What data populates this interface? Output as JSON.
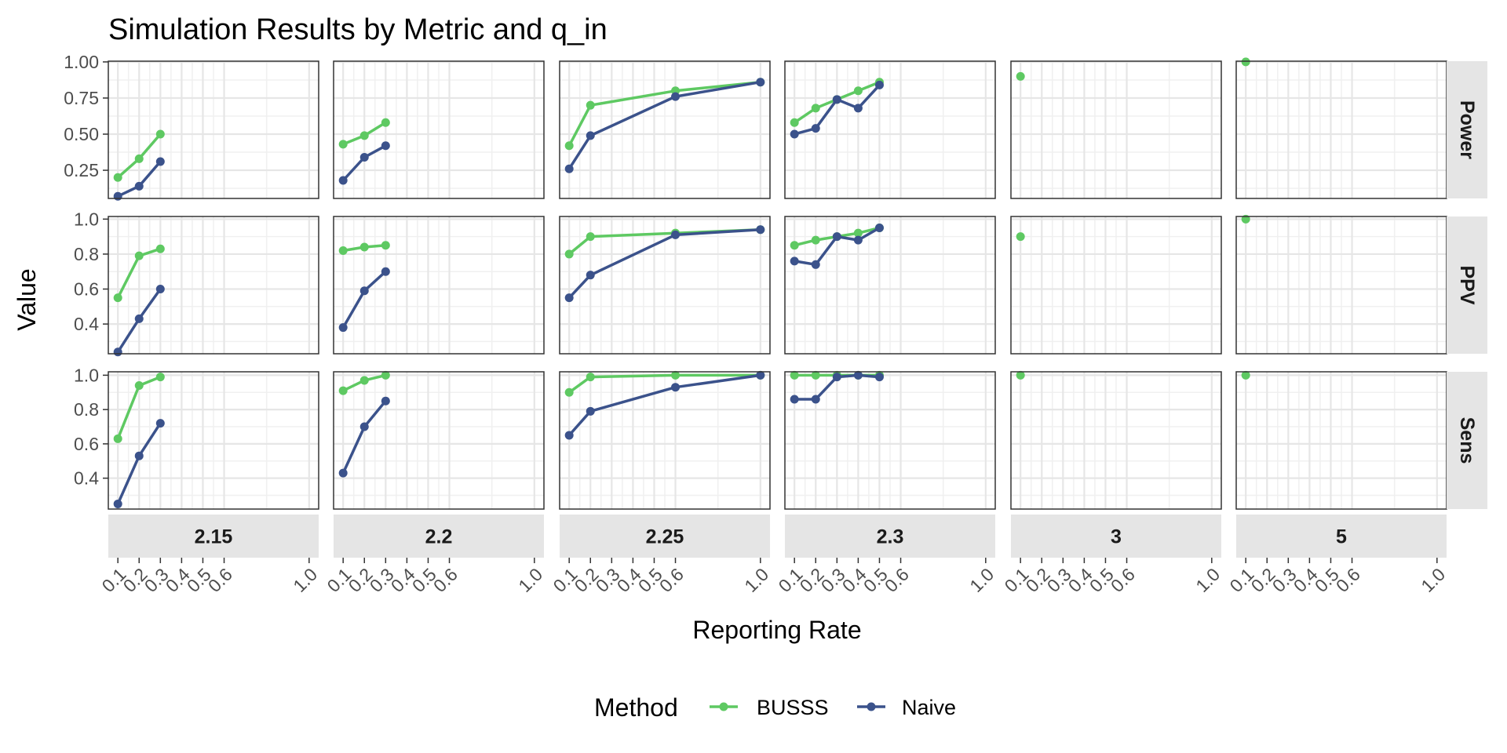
{
  "chart_data": {
    "type": "line",
    "title": "Simulation Results by Metric and q_in",
    "xlabel": "Reporting Rate",
    "ylabel": "Value",
    "legend": {
      "title": "Method",
      "position": "bottom"
    },
    "x_ticks": [
      0.1,
      0.2,
      0.3,
      0.4,
      0.5,
      0.6,
      1.0
    ],
    "x_tick_labels": [
      "0.1",
      "0.2",
      "0.3",
      "0.4",
      "0.5",
      "0.6",
      "1.0"
    ],
    "xlim": [
      0.055,
      1.045
    ],
    "grid": true,
    "colors": {
      "BUSSS": "#5ec962",
      "Naive": "#3b528b"
    },
    "columns": [
      "2.15",
      "2.2",
      "2.25",
      "2.3",
      "3",
      "5"
    ],
    "rows": [
      {
        "label": "Power",
        "ylim": [
          0.055,
          1.005
        ],
        "y_ticks": [
          0.25,
          0.5,
          0.75,
          1.0
        ],
        "y_tick_labels": [
          "0.25",
          "0.50",
          "0.75",
          "1.00"
        ]
      },
      {
        "label": "PPV",
        "ylim": [
          0.23,
          1.015
        ],
        "y_ticks": [
          0.4,
          0.6,
          0.8,
          1.0
        ],
        "y_tick_labels": [
          "0.4",
          "0.6",
          "0.8",
          "1.0"
        ]
      },
      {
        "label": "Sens",
        "ylim": [
          0.22,
          1.02
        ],
        "y_ticks": [
          0.4,
          0.6,
          0.8,
          1.0
        ],
        "y_tick_labels": [
          "0.4",
          "0.6",
          "0.8",
          "1.0"
        ]
      }
    ],
    "series": [
      {
        "name": "BUSSS",
        "metric": "Power",
        "q_in": "2.15",
        "x": [
          0.1,
          0.2,
          0.3
        ],
        "y": [
          0.2,
          0.33,
          0.5
        ]
      },
      {
        "name": "Naive",
        "metric": "Power",
        "q_in": "2.15",
        "x": [
          0.1,
          0.2,
          0.3
        ],
        "y": [
          0.07,
          0.14,
          0.31
        ]
      },
      {
        "name": "BUSSS",
        "metric": "Power",
        "q_in": "2.2",
        "x": [
          0.1,
          0.2,
          0.3
        ],
        "y": [
          0.43,
          0.49,
          0.58
        ]
      },
      {
        "name": "Naive",
        "metric": "Power",
        "q_in": "2.2",
        "x": [
          0.1,
          0.2,
          0.3
        ],
        "y": [
          0.18,
          0.34,
          0.42
        ]
      },
      {
        "name": "BUSSS",
        "metric": "Power",
        "q_in": "2.25",
        "x": [
          0.1,
          0.2,
          0.6,
          1.0
        ],
        "y": [
          0.42,
          0.7,
          0.8,
          0.86
        ]
      },
      {
        "name": "Naive",
        "metric": "Power",
        "q_in": "2.25",
        "x": [
          0.1,
          0.2,
          0.6,
          1.0
        ],
        "y": [
          0.26,
          0.49,
          0.76,
          0.86
        ]
      },
      {
        "name": "BUSSS",
        "metric": "Power",
        "q_in": "2.3",
        "x": [
          0.1,
          0.2,
          0.3,
          0.4,
          0.5
        ],
        "y": [
          0.58,
          0.68,
          0.74,
          0.8,
          0.86
        ]
      },
      {
        "name": "Naive",
        "metric": "Power",
        "q_in": "2.3",
        "x": [
          0.1,
          0.2,
          0.3,
          0.4,
          0.5
        ],
        "y": [
          0.5,
          0.54,
          0.74,
          0.68,
          0.84
        ]
      },
      {
        "name": "BUSSS",
        "metric": "Power",
        "q_in": "3",
        "x": [
          0.1
        ],
        "y": [
          0.9
        ]
      },
      {
        "name": "BUSSS",
        "metric": "Power",
        "q_in": "5",
        "x": [
          0.1
        ],
        "y": [
          1.0
        ]
      },
      {
        "name": "BUSSS",
        "metric": "PPV",
        "q_in": "2.15",
        "x": [
          0.1,
          0.2,
          0.3
        ],
        "y": [
          0.55,
          0.79,
          0.83
        ]
      },
      {
        "name": "Naive",
        "metric": "PPV",
        "q_in": "2.15",
        "x": [
          0.1,
          0.2,
          0.3
        ],
        "y": [
          0.24,
          0.43,
          0.6
        ]
      },
      {
        "name": "BUSSS",
        "metric": "PPV",
        "q_in": "2.2",
        "x": [
          0.1,
          0.2,
          0.3
        ],
        "y": [
          0.82,
          0.84,
          0.85
        ]
      },
      {
        "name": "Naive",
        "metric": "PPV",
        "q_in": "2.2",
        "x": [
          0.1,
          0.2,
          0.3
        ],
        "y": [
          0.38,
          0.59,
          0.7
        ]
      },
      {
        "name": "BUSSS",
        "metric": "PPV",
        "q_in": "2.25",
        "x": [
          0.1,
          0.2,
          0.6,
          1.0
        ],
        "y": [
          0.8,
          0.9,
          0.92,
          0.94
        ]
      },
      {
        "name": "Naive",
        "metric": "PPV",
        "q_in": "2.25",
        "x": [
          0.1,
          0.2,
          0.6,
          1.0
        ],
        "y": [
          0.55,
          0.68,
          0.91,
          0.94
        ]
      },
      {
        "name": "BUSSS",
        "metric": "PPV",
        "q_in": "2.3",
        "x": [
          0.1,
          0.2,
          0.3,
          0.4,
          0.5
        ],
        "y": [
          0.85,
          0.88,
          0.9,
          0.92,
          0.95
        ]
      },
      {
        "name": "Naive",
        "metric": "PPV",
        "q_in": "2.3",
        "x": [
          0.1,
          0.2,
          0.3,
          0.4,
          0.5
        ],
        "y": [
          0.76,
          0.74,
          0.9,
          0.88,
          0.95
        ]
      },
      {
        "name": "BUSSS",
        "metric": "PPV",
        "q_in": "3",
        "x": [
          0.1
        ],
        "y": [
          0.9
        ]
      },
      {
        "name": "BUSSS",
        "metric": "PPV",
        "q_in": "5",
        "x": [
          0.1
        ],
        "y": [
          1.0
        ]
      },
      {
        "name": "BUSSS",
        "metric": "Sens",
        "q_in": "2.15",
        "x": [
          0.1,
          0.2,
          0.3
        ],
        "y": [
          0.63,
          0.94,
          0.99
        ]
      },
      {
        "name": "Naive",
        "metric": "Sens",
        "q_in": "2.15",
        "x": [
          0.1,
          0.2,
          0.3
        ],
        "y": [
          0.25,
          0.53,
          0.72
        ]
      },
      {
        "name": "BUSSS",
        "metric": "Sens",
        "q_in": "2.2",
        "x": [
          0.1,
          0.2,
          0.3
        ],
        "y": [
          0.91,
          0.97,
          1.0
        ]
      },
      {
        "name": "Naive",
        "metric": "Sens",
        "q_in": "2.2",
        "x": [
          0.1,
          0.2,
          0.3
        ],
        "y": [
          0.43,
          0.7,
          0.85
        ]
      },
      {
        "name": "BUSSS",
        "metric": "Sens",
        "q_in": "2.25",
        "x": [
          0.1,
          0.2,
          0.6,
          1.0
        ],
        "y": [
          0.9,
          0.99,
          1.0,
          1.0
        ]
      },
      {
        "name": "Naive",
        "metric": "Sens",
        "q_in": "2.25",
        "x": [
          0.1,
          0.2,
          0.6,
          1.0
        ],
        "y": [
          0.65,
          0.79,
          0.93,
          1.0
        ]
      },
      {
        "name": "BUSSS",
        "metric": "Sens",
        "q_in": "2.3",
        "x": [
          0.1,
          0.2,
          0.3,
          0.4,
          0.5
        ],
        "y": [
          1.0,
          1.0,
          1.0,
          1.0,
          1.0
        ]
      },
      {
        "name": "Naive",
        "metric": "Sens",
        "q_in": "2.3",
        "x": [
          0.1,
          0.2,
          0.3,
          0.4,
          0.5
        ],
        "y": [
          0.86,
          0.86,
          0.99,
          1.0,
          0.99
        ]
      },
      {
        "name": "BUSSS",
        "metric": "Sens",
        "q_in": "3",
        "x": [
          0.1
        ],
        "y": [
          1.0
        ]
      },
      {
        "name": "BUSSS",
        "metric": "Sens",
        "q_in": "5",
        "x": [
          0.1
        ],
        "y": [
          1.0
        ]
      }
    ]
  }
}
